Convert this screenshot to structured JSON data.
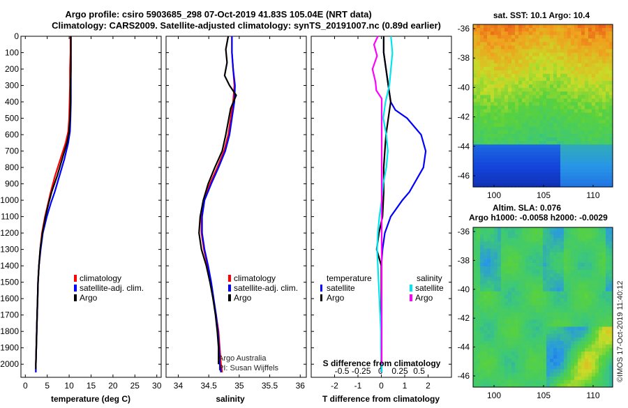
{
  "title_line1": "Argo profile: csiro 5903685_298 07-Oct-2019 41.83S 105.04E (NRT data)",
  "title_line2": "Climatology: CARS2009. Satellite-adjusted climatology: synTS_20191007.nc (0.89d earlier)",
  "credit": "Argo Australia",
  "pi": "PI: Susan Wijffels",
  "timestamp": "©IMOS 17-Oct-2019 11:40:12",
  "colors": {
    "climatology": "#ff0000",
    "satellite": "#0000ff",
    "argo": "#000000",
    "sal_sat": "#00e5ee",
    "sal_argo": "#ff00ff"
  },
  "chart_data": [
    {
      "type": "line",
      "xlabel": "temperature (deg C)",
      "ylabel": "",
      "xlim": [
        -1,
        31
      ],
      "ylim": [
        2080,
        0
      ],
      "x_ticks": [
        "0",
        "5",
        "10",
        "15",
        "20",
        "25",
        "30"
      ],
      "y_ticks": [
        "0",
        "100",
        "200",
        "300",
        "400",
        "500",
        "600",
        "700",
        "800",
        "900",
        "1000",
        "1100",
        "1200",
        "1300",
        "1400",
        "1500",
        "1600",
        "1700",
        "1800",
        "1900",
        "2000"
      ],
      "legend": [
        "climatology",
        "satellite-adj. clim.",
        "Argo"
      ],
      "series": [
        {
          "name": "climatology",
          "color": "#ff0000",
          "points": [
            [
              10.3,
              0
            ],
            [
              10.3,
              100
            ],
            [
              10.2,
              200
            ],
            [
              10.2,
              300
            ],
            [
              10.1,
              400
            ],
            [
              10.0,
              500
            ],
            [
              9.8,
              580
            ],
            [
              9.2,
              650
            ],
            [
              8.0,
              750
            ],
            [
              6.8,
              850
            ],
            [
              5.8,
              950
            ],
            [
              5.2,
              1020
            ],
            [
              4.5,
              1100
            ],
            [
              3.8,
              1200
            ],
            [
              3.4,
              1300
            ],
            [
              3.1,
              1400
            ],
            [
              2.9,
              1500
            ],
            [
              2.8,
              1600
            ],
            [
              2.7,
              1700
            ],
            [
              2.6,
              1800
            ],
            [
              2.5,
              1900
            ],
            [
              2.4,
              2000
            ],
            [
              2.4,
              2050
            ]
          ]
        },
        {
          "name": "satellite-adj. clim.",
          "color": "#0000ff",
          "points": [
            [
              10.4,
              0
            ],
            [
              10.4,
              100
            ],
            [
              10.4,
              200
            ],
            [
              10.4,
              300
            ],
            [
              10.4,
              400
            ],
            [
              10.3,
              500
            ],
            [
              10.2,
              580
            ],
            [
              9.8,
              650
            ],
            [
              8.9,
              750
            ],
            [
              7.8,
              850
            ],
            [
              6.7,
              950
            ],
            [
              5.8,
              1020
            ],
            [
              4.9,
              1100
            ],
            [
              4.0,
              1200
            ],
            [
              3.5,
              1300
            ],
            [
              3.1,
              1400
            ],
            [
              2.9,
              1500
            ],
            [
              2.8,
              1600
            ],
            [
              2.7,
              1700
            ],
            [
              2.6,
              1800
            ],
            [
              2.5,
              1900
            ],
            [
              2.4,
              2000
            ],
            [
              2.4,
              2050
            ]
          ]
        },
        {
          "name": "Argo",
          "color": "#000000",
          "points": [
            [
              10.4,
              0
            ],
            [
              10.4,
              100
            ],
            [
              10.4,
              200
            ],
            [
              10.3,
              300
            ],
            [
              10.3,
              400
            ],
            [
              10.2,
              500
            ],
            [
              10.0,
              580
            ],
            [
              9.5,
              650
            ],
            [
              8.4,
              750
            ],
            [
              7.3,
              850
            ],
            [
              6.0,
              950
            ],
            [
              5.3,
              1020
            ],
            [
              4.6,
              1100
            ],
            [
              3.9,
              1200
            ],
            [
              3.4,
              1300
            ],
            [
              3.1,
              1400
            ],
            [
              2.9,
              1500
            ],
            [
              2.8,
              1600
            ],
            [
              2.7,
              1700
            ],
            [
              2.6,
              1800
            ],
            [
              2.5,
              1900
            ],
            [
              2.4,
              2000
            ],
            [
              2.4,
              2030
            ]
          ]
        }
      ]
    },
    {
      "type": "line",
      "xlabel": "salinity",
      "xlim": [
        33.8,
        36.1
      ],
      "ylim": [
        2080,
        0
      ],
      "x_ticks": [
        "34",
        "34.5",
        "35",
        "35.5",
        "36"
      ],
      "legend": [
        "climatology",
        "satellite-adj. clim.",
        "Argo"
      ],
      "series": [
        {
          "name": "climatology",
          "color": "#ff0000",
          "points": [
            [
              34.88,
              0
            ],
            [
              34.88,
              100
            ],
            [
              34.9,
              200
            ],
            [
              34.92,
              300
            ],
            [
              34.9,
              400
            ],
            [
              34.86,
              500
            ],
            [
              34.82,
              600
            ],
            [
              34.75,
              700
            ],
            [
              34.64,
              800
            ],
            [
              34.52,
              900
            ],
            [
              34.42,
              1000
            ],
            [
              34.38,
              1100
            ],
            [
              34.38,
              1200
            ],
            [
              34.42,
              1300
            ],
            [
              34.48,
              1400
            ],
            [
              34.53,
              1500
            ],
            [
              34.57,
              1600
            ],
            [
              34.62,
              1700
            ],
            [
              34.66,
              1800
            ],
            [
              34.68,
              1900
            ],
            [
              34.7,
              2000
            ],
            [
              34.72,
              2050
            ]
          ]
        },
        {
          "name": "satellite-adj. clim.",
          "color": "#0000ff",
          "points": [
            [
              34.88,
              0
            ],
            [
              34.88,
              100
            ],
            [
              34.9,
              200
            ],
            [
              34.93,
              300
            ],
            [
              34.92,
              400
            ],
            [
              34.88,
              500
            ],
            [
              34.84,
              600
            ],
            [
              34.77,
              700
            ],
            [
              34.66,
              800
            ],
            [
              34.54,
              900
            ],
            [
              34.43,
              1000
            ],
            [
              34.39,
              1100
            ],
            [
              34.39,
              1200
            ],
            [
              34.43,
              1300
            ],
            [
              34.49,
              1400
            ],
            [
              34.54,
              1500
            ],
            [
              34.58,
              1600
            ],
            [
              34.62,
              1700
            ],
            [
              34.65,
              1800
            ],
            [
              34.67,
              1900
            ],
            [
              34.68,
              2000
            ],
            [
              34.7,
              2050
            ]
          ]
        },
        {
          "name": "Argo",
          "color": "#000000",
          "points": [
            [
              34.82,
              0
            ],
            [
              34.78,
              80
            ],
            [
              34.8,
              160
            ],
            [
              34.76,
              240
            ],
            [
              34.84,
              300
            ],
            [
              34.95,
              360
            ],
            [
              34.86,
              440
            ],
            [
              34.82,
              520
            ],
            [
              34.78,
              600
            ],
            [
              34.72,
              700
            ],
            [
              34.6,
              800
            ],
            [
              34.49,
              900
            ],
            [
              34.41,
              1000
            ],
            [
              34.36,
              1100
            ],
            [
              34.34,
              1200
            ],
            [
              34.38,
              1300
            ],
            [
              34.46,
              1400
            ],
            [
              34.52,
              1500
            ],
            [
              34.57,
              1600
            ],
            [
              34.61,
              1700
            ],
            [
              34.64,
              1800
            ],
            [
              34.66,
              1900
            ],
            [
              34.66,
              2000
            ]
          ]
        }
      ]
    },
    {
      "type": "line",
      "xlabel": "T difference from climatology",
      "xlabel2": "S difference from climatology",
      "xlim": [
        -3.0,
        3.0
      ],
      "ylim": [
        2080,
        0
      ],
      "x_ticks": [
        "-2",
        "-1",
        "0",
        "1",
        "2"
      ],
      "x2_ticks": [
        "-0.5",
        "-0.25",
        "0",
        "0.25",
        "0.5"
      ],
      "legend_left_title": "temperature",
      "legend_right_title": "salinity",
      "legend_left": [
        "satellite",
        "Argo"
      ],
      "legend_right": [
        "satellite",
        "Argo"
      ],
      "series": [
        {
          "name": "T satellite",
          "color": "#0000ff",
          "points": [
            [
              0.1,
              0
            ],
            [
              0.1,
              100
            ],
            [
              0.2,
              200
            ],
            [
              0.3,
              300
            ],
            [
              0.4,
              400
            ],
            [
              0.6,
              450
            ],
            [
              1.1,
              500
            ],
            [
              1.7,
              600
            ],
            [
              1.9,
              700
            ],
            [
              1.8,
              800
            ],
            [
              1.2,
              950
            ],
            [
              0.9,
              1000
            ],
            [
              0.4,
              1100
            ],
            [
              0.15,
              1200
            ],
            [
              0.05,
              1300
            ],
            [
              0.0,
              1400
            ],
            [
              0.0,
              1700
            ],
            [
              0.0,
              2000
            ],
            [
              0.0,
              2050
            ]
          ]
        },
        {
          "name": "T Argo",
          "color": "#000000",
          "points": [
            [
              0.1,
              0
            ],
            [
              0.1,
              100
            ],
            [
              0.2,
              200
            ],
            [
              0.3,
              300
            ],
            [
              0.4,
              400
            ],
            [
              0.3,
              500
            ],
            [
              0.2,
              600
            ],
            [
              0.15,
              700
            ],
            [
              0.1,
              800
            ],
            [
              0.1,
              950
            ],
            [
              0.05,
              1100
            ],
            [
              -0.1,
              1200
            ],
            [
              -0.2,
              1300
            ],
            [
              0.0,
              1400
            ],
            [
              0.0,
              1700
            ],
            [
              0.0,
              2000
            ],
            [
              0.0,
              2030
            ]
          ]
        },
        {
          "name": "S satellite",
          "color": "#00e5ee",
          "points": [
            [
              0.12,
              0
            ],
            [
              0.14,
              100
            ],
            [
              0.12,
              200
            ],
            [
              0.1,
              300
            ],
            [
              0.05,
              400
            ],
            [
              0.02,
              500
            ],
            [
              0.06,
              600
            ],
            [
              0.08,
              700
            ],
            [
              0.06,
              800
            ],
            [
              0.02,
              900
            ],
            [
              0.0,
              1000
            ],
            [
              -0.03,
              1100
            ],
            [
              -0.05,
              1200
            ],
            [
              -0.06,
              1300
            ],
            [
              -0.05,
              1400
            ],
            [
              -0.04,
              1500
            ],
            [
              -0.03,
              1600
            ],
            [
              -0.02,
              1700
            ],
            [
              -0.01,
              1800
            ],
            [
              -0.01,
              1900
            ],
            [
              0.0,
              2000
            ],
            [
              0.0,
              2050
            ]
          ]
        },
        {
          "name": "S Argo",
          "color": "#ff00ff",
          "points": [
            [
              -0.05,
              0
            ],
            [
              -0.1,
              50
            ],
            [
              -0.06,
              120
            ],
            [
              -0.12,
              200
            ],
            [
              -0.08,
              280
            ],
            [
              -0.07,
              330
            ],
            [
              0.0,
              380
            ],
            [
              0.0,
              450
            ],
            [
              0.0,
              600
            ],
            [
              0.0,
              800
            ],
            [
              0.0,
              1000
            ],
            [
              0.0,
              1200
            ],
            [
              0.0,
              1400
            ],
            [
              0.0,
              2000
            ]
          ]
        }
      ]
    }
  ],
  "map_sst": {
    "title": "sat. SST: 10.1  Argo: 10.4",
    "x_ticks": [
      "100",
      "105",
      "110"
    ],
    "y_ticks": [
      "-36",
      "-38",
      "-40",
      "-42",
      "-44",
      "-46"
    ]
  },
  "map_sla": {
    "title1": "Altim. SLA: 0.076",
    "title2": "Argo h1000: -0.0058 h2000: -0.0029",
    "x_ticks": [
      "100",
      "105",
      "110"
    ],
    "y_ticks": [
      "-36",
      "-38",
      "-40",
      "-42",
      "-44",
      "-46"
    ]
  }
}
